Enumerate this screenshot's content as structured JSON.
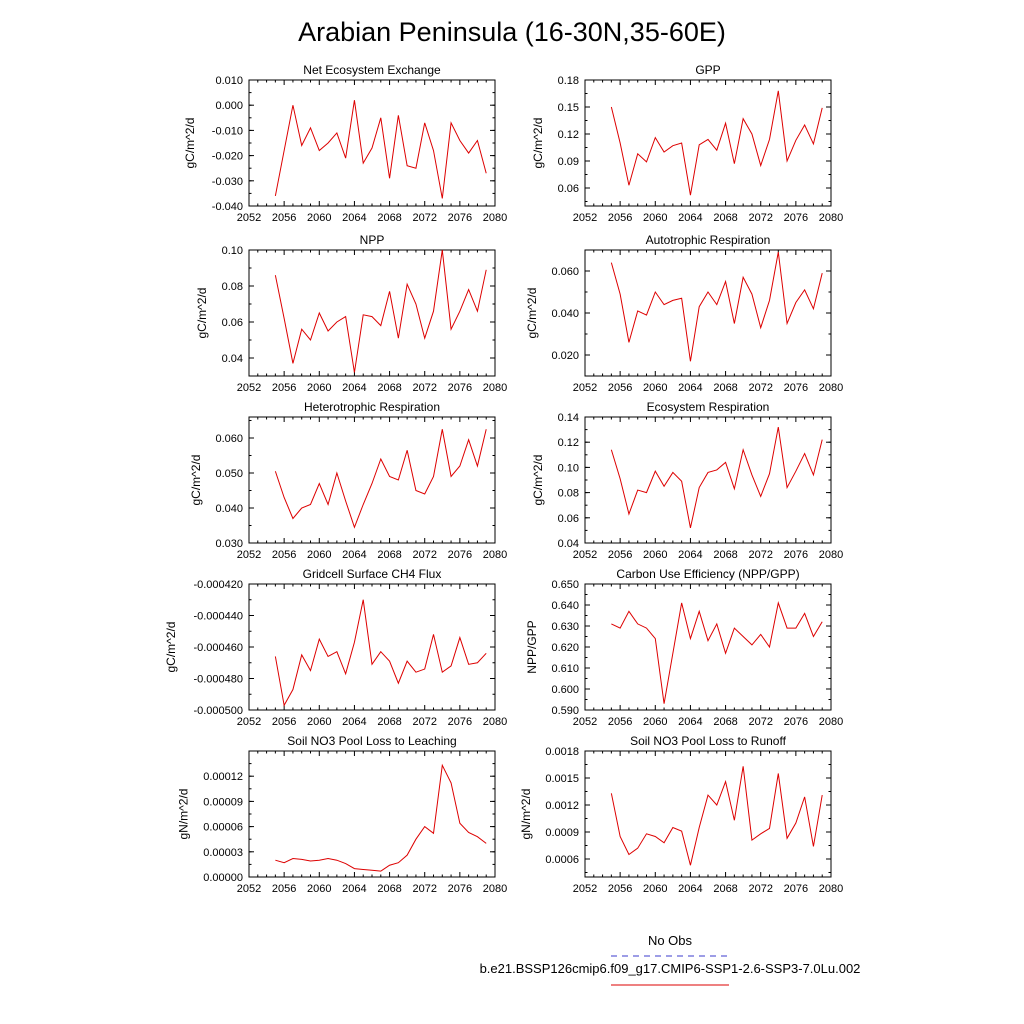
{
  "figure": {
    "title": "Arabian Peninsula (16-30N,35-60E)",
    "legend": {
      "entries": [
        {
          "label": "No Obs",
          "color": "#3b3bcc",
          "dash": true
        },
        {
          "label": "b.e21.BSSP126cmip6.f09_g17.CMIP6-SSP1-2.6-SSP3-7.0Lu.002",
          "color": "#dd0000",
          "dash": false
        }
      ]
    }
  },
  "chart_data": [
    {
      "type": "line",
      "title": "Net Ecosystem Exchange",
      "xlabel": "",
      "ylabel": "gC/m^2/d",
      "xlim": [
        2052,
        2080
      ],
      "ylim": [
        -0.04,
        0.01
      ],
      "xticks": [
        2052,
        2056,
        2060,
        2064,
        2068,
        2072,
        2076,
        2080
      ],
      "yticks": [
        -0.04,
        -0.03,
        -0.02,
        -0.01,
        0.0,
        0.01
      ],
      "yticklabels": [
        "-0.040",
        "-0.030",
        "-0.020",
        "-0.010",
        "0.000",
        "0.010"
      ],
      "x": [
        2055,
        2056,
        2057,
        2058,
        2059,
        2060,
        2061,
        2062,
        2063,
        2064,
        2065,
        2066,
        2067,
        2068,
        2069,
        2070,
        2071,
        2072,
        2073,
        2074,
        2075,
        2076,
        2077,
        2078,
        2079
      ],
      "y": [
        -0.036,
        -0.018,
        0.0,
        -0.016,
        -0.009,
        -0.018,
        -0.015,
        -0.011,
        -0.021,
        0.002,
        -0.023,
        -0.017,
        -0.005,
        -0.029,
        -0.004,
        -0.024,
        -0.025,
        -0.007,
        -0.018,
        -0.037,
        -0.007,
        -0.014,
        -0.019,
        -0.014,
        -0.027
      ],
      "color": "#dd0000"
    },
    {
      "type": "line",
      "title": "GPP",
      "xlabel": "",
      "ylabel": "gC/m^2/d",
      "xlim": [
        2052,
        2080
      ],
      "ylim": [
        0.04,
        0.18
      ],
      "xticks": [
        2052,
        2056,
        2060,
        2064,
        2068,
        2072,
        2076,
        2080
      ],
      "yticks": [
        0.06,
        0.09,
        0.12,
        0.15,
        0.18
      ],
      "yticklabels": [
        "0.06",
        "0.09",
        "0.12",
        "0.15",
        "0.18"
      ],
      "x": [
        2055,
        2056,
        2057,
        2058,
        2059,
        2060,
        2061,
        2062,
        2063,
        2064,
        2065,
        2066,
        2067,
        2068,
        2069,
        2070,
        2071,
        2072,
        2073,
        2074,
        2075,
        2076,
        2077,
        2078,
        2079
      ],
      "y": [
        0.15,
        0.11,
        0.063,
        0.098,
        0.089,
        0.116,
        0.1,
        0.107,
        0.11,
        0.052,
        0.108,
        0.114,
        0.102,
        0.132,
        0.087,
        0.137,
        0.12,
        0.085,
        0.114,
        0.168,
        0.09,
        0.113,
        0.13,
        0.109,
        0.149
      ],
      "color": "#dd0000"
    },
    {
      "type": "line",
      "title": "NPP",
      "xlabel": "",
      "ylabel": "gC/m^2/d",
      "xlim": [
        2052,
        2080
      ],
      "ylim": [
        0.03,
        0.1
      ],
      "xticks": [
        2052,
        2056,
        2060,
        2064,
        2068,
        2072,
        2076,
        2080
      ],
      "yticks": [
        0.04,
        0.06,
        0.08,
        0.1
      ],
      "yticklabels": [
        "0.04",
        "0.06",
        "0.08",
        "0.10"
      ],
      "x": [
        2055,
        2056,
        2057,
        2058,
        2059,
        2060,
        2061,
        2062,
        2063,
        2064,
        2065,
        2066,
        2067,
        2068,
        2069,
        2070,
        2071,
        2072,
        2073,
        2074,
        2075,
        2076,
        2077,
        2078,
        2079
      ],
      "y": [
        0.086,
        0.062,
        0.037,
        0.056,
        0.05,
        0.065,
        0.055,
        0.06,
        0.063,
        0.032,
        0.064,
        0.063,
        0.058,
        0.077,
        0.051,
        0.081,
        0.07,
        0.051,
        0.066,
        0.1,
        0.056,
        0.066,
        0.078,
        0.066,
        0.089
      ],
      "color": "#dd0000"
    },
    {
      "type": "line",
      "title": "Autotrophic Respiration",
      "xlabel": "",
      "ylabel": "gC/m^2/d",
      "xlim": [
        2052,
        2080
      ],
      "ylim": [
        0.01,
        0.07
      ],
      "xticks": [
        2052,
        2056,
        2060,
        2064,
        2068,
        2072,
        2076,
        2080
      ],
      "yticks": [
        0.02,
        0.04,
        0.06
      ],
      "yticklabels": [
        "0.020",
        "0.040",
        "0.060"
      ],
      "x": [
        2055,
        2056,
        2057,
        2058,
        2059,
        2060,
        2061,
        2062,
        2063,
        2064,
        2065,
        2066,
        2067,
        2068,
        2069,
        2070,
        2071,
        2072,
        2073,
        2074,
        2075,
        2076,
        2077,
        2078,
        2079
      ],
      "y": [
        0.064,
        0.049,
        0.026,
        0.041,
        0.039,
        0.05,
        0.044,
        0.046,
        0.047,
        0.017,
        0.043,
        0.05,
        0.044,
        0.055,
        0.035,
        0.057,
        0.049,
        0.033,
        0.046,
        0.069,
        0.035,
        0.045,
        0.051,
        0.042,
        0.059
      ],
      "color": "#dd0000"
    },
    {
      "type": "line",
      "title": "Heterotrophic Respiration",
      "xlabel": "",
      "ylabel": "gC/m^2/d",
      "xlim": [
        2052,
        2080
      ],
      "ylim": [
        0.03,
        0.066
      ],
      "xticks": [
        2052,
        2056,
        2060,
        2064,
        2068,
        2072,
        2076,
        2080
      ],
      "yticks": [
        0.03,
        0.04,
        0.05,
        0.06
      ],
      "yticklabels": [
        "0.030",
        "0.040",
        "0.050",
        "0.060"
      ],
      "x": [
        2055,
        2056,
        2057,
        2058,
        2059,
        2060,
        2061,
        2062,
        2063,
        2064,
        2065,
        2066,
        2067,
        2068,
        2069,
        2070,
        2071,
        2072,
        2073,
        2074,
        2075,
        2076,
        2077,
        2078,
        2079
      ],
      "y": [
        0.0505,
        0.043,
        0.037,
        0.04,
        0.041,
        0.047,
        0.041,
        0.05,
        0.042,
        0.0345,
        0.041,
        0.047,
        0.054,
        0.049,
        0.048,
        0.0565,
        0.045,
        0.044,
        0.049,
        0.0625,
        0.049,
        0.052,
        0.0595,
        0.052,
        0.0625
      ],
      "color": "#dd0000"
    },
    {
      "type": "line",
      "title": "Ecosystem Respiration",
      "xlabel": "",
      "ylabel": "gC/m^2/d",
      "xlim": [
        2052,
        2080
      ],
      "ylim": [
        0.04,
        0.14
      ],
      "xticks": [
        2052,
        2056,
        2060,
        2064,
        2068,
        2072,
        2076,
        2080
      ],
      "yticks": [
        0.04,
        0.06,
        0.08,
        0.1,
        0.12,
        0.14
      ],
      "yticklabels": [
        "0.04",
        "0.06",
        "0.08",
        "0.10",
        "0.12",
        "0.14"
      ],
      "x": [
        2055,
        2056,
        2057,
        2058,
        2059,
        2060,
        2061,
        2062,
        2063,
        2064,
        2065,
        2066,
        2067,
        2068,
        2069,
        2070,
        2071,
        2072,
        2073,
        2074,
        2075,
        2076,
        2077,
        2078,
        2079
      ],
      "y": [
        0.114,
        0.091,
        0.063,
        0.082,
        0.08,
        0.097,
        0.085,
        0.096,
        0.089,
        0.052,
        0.084,
        0.096,
        0.098,
        0.104,
        0.083,
        0.114,
        0.094,
        0.077,
        0.095,
        0.132,
        0.084,
        0.097,
        0.111,
        0.094,
        0.122
      ],
      "color": "#dd0000"
    },
    {
      "type": "line",
      "title": "Gridcell Surface CH4 Flux",
      "xlabel": "",
      "ylabel": "gC/m^2/d",
      "xlim": [
        2052,
        2080
      ],
      "ylim": [
        -0.0005,
        -0.00042
      ],
      "xticks": [
        2052,
        2056,
        2060,
        2064,
        2068,
        2072,
        2076,
        2080
      ],
      "yticks": [
        -0.0005,
        -0.00048,
        -0.00046,
        -0.00044,
        -0.00042
      ],
      "yticklabels": [
        "-0.000500",
        "-0.000480",
        "-0.000460",
        "-0.000440",
        "-0.000420"
      ],
      "x": [
        2055,
        2056,
        2057,
        2058,
        2059,
        2060,
        2061,
        2062,
        2063,
        2064,
        2065,
        2066,
        2067,
        2068,
        2069,
        2070,
        2071,
        2072,
        2073,
        2074,
        2075,
        2076,
        2077,
        2078,
        2079
      ],
      "y": [
        -0.000466,
        -0.000497,
        -0.000487,
        -0.000465,
        -0.000475,
        -0.000455,
        -0.000466,
        -0.000463,
        -0.000477,
        -0.000457,
        -0.00043,
        -0.000471,
        -0.000463,
        -0.000469,
        -0.000483,
        -0.000469,
        -0.000476,
        -0.000474,
        -0.000452,
        -0.000476,
        -0.000472,
        -0.000454,
        -0.000471,
        -0.00047,
        -0.000464
      ],
      "color": "#dd0000"
    },
    {
      "type": "line",
      "title": "Carbon Use Efficiency (NPP/GPP)",
      "xlabel": "",
      "ylabel": "NPP/GPP",
      "xlim": [
        2052,
        2080
      ],
      "ylim": [
        0.59,
        0.65
      ],
      "xticks": [
        2052,
        2056,
        2060,
        2064,
        2068,
        2072,
        2076,
        2080
      ],
      "yticks": [
        0.59,
        0.6,
        0.61,
        0.62,
        0.63,
        0.64,
        0.65
      ],
      "yticklabels": [
        "0.590",
        "0.600",
        "0.610",
        "0.620",
        "0.630",
        "0.640",
        "0.650"
      ],
      "x": [
        2055,
        2056,
        2057,
        2058,
        2059,
        2060,
        2061,
        2062,
        2063,
        2064,
        2065,
        2066,
        2067,
        2068,
        2069,
        2070,
        2071,
        2072,
        2073,
        2074,
        2075,
        2076,
        2077,
        2078,
        2079
      ],
      "y": [
        0.631,
        0.629,
        0.637,
        0.631,
        0.629,
        0.624,
        0.593,
        0.617,
        0.641,
        0.624,
        0.637,
        0.623,
        0.631,
        0.617,
        0.629,
        0.625,
        0.621,
        0.626,
        0.62,
        0.641,
        0.629,
        0.629,
        0.636,
        0.625,
        0.632
      ],
      "color": "#dd0000"
    },
    {
      "type": "line",
      "title": "Soil NO3 Pool Loss to Leaching",
      "xlabel": "",
      "ylabel": "gN/m^2/d",
      "xlim": [
        2052,
        2080
      ],
      "ylim": [
        0.0,
        0.00015
      ],
      "xticks": [
        2052,
        2056,
        2060,
        2064,
        2068,
        2072,
        2076,
        2080
      ],
      "yticks": [
        0.0,
        3e-05,
        6e-05,
        9e-05,
        0.00012
      ],
      "yticklabels": [
        "0.00000",
        "0.00003",
        "0.00006",
        "0.00009",
        "0.00012"
      ],
      "x": [
        2055,
        2056,
        2057,
        2058,
        2059,
        2060,
        2061,
        2062,
        2063,
        2064,
        2065,
        2066,
        2067,
        2068,
        2069,
        2070,
        2071,
        2072,
        2073,
        2074,
        2075,
        2076,
        2077,
        2078,
        2079
      ],
      "y": [
        2e-05,
        1.7e-05,
        2.2e-05,
        2.1e-05,
        1.9e-05,
        2e-05,
        2.2e-05,
        2e-05,
        1.6e-05,
        1e-05,
        9e-06,
        8e-06,
        7e-06,
        1.4e-05,
        1.7e-05,
        2.6e-05,
        4.5e-05,
        6e-05,
        5.2e-05,
        0.000133,
        0.000112,
        6.4e-05,
        5.3e-05,
        4.8e-05,
        4e-05
      ],
      "color": "#dd0000"
    },
    {
      "type": "line",
      "title": "Soil NO3 Pool Loss to Runoff",
      "xlabel": "",
      "ylabel": "gN/m^2/d",
      "xlim": [
        2052,
        2080
      ],
      "ylim": [
        0.0004,
        0.0018
      ],
      "xticks": [
        2052,
        2056,
        2060,
        2064,
        2068,
        2072,
        2076,
        2080
      ],
      "yticks": [
        0.0006,
        0.0009,
        0.0012,
        0.0015,
        0.0018
      ],
      "yticklabels": [
        "0.0006",
        "0.0009",
        "0.0012",
        "0.0015",
        "0.0018"
      ],
      "x": [
        2055,
        2056,
        2057,
        2058,
        2059,
        2060,
        2061,
        2062,
        2063,
        2064,
        2065,
        2066,
        2067,
        2068,
        2069,
        2070,
        2071,
        2072,
        2073,
        2074,
        2075,
        2076,
        2077,
        2078,
        2079
      ],
      "y": [
        0.00133,
        0.00085,
        0.00065,
        0.00072,
        0.00088,
        0.00085,
        0.00078,
        0.00095,
        0.00091,
        0.00053,
        0.00095,
        0.00131,
        0.0012,
        0.00146,
        0.00103,
        0.00163,
        0.00081,
        0.00088,
        0.00094,
        0.00155,
        0.00083,
        0.001,
        0.00129,
        0.00074,
        0.00131
      ],
      "color": "#dd0000"
    }
  ]
}
